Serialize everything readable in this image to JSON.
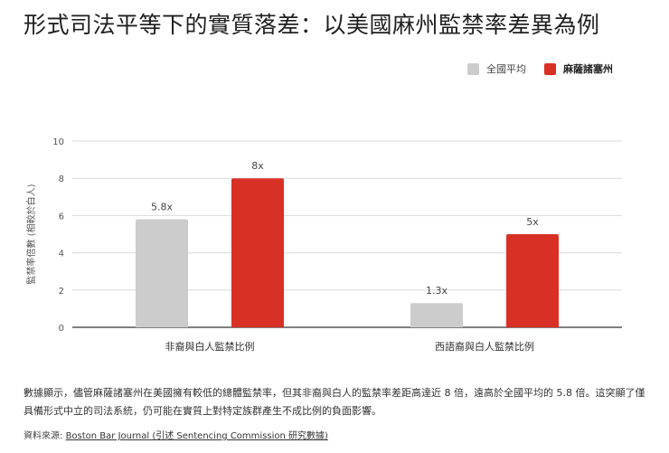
{
  "title": "形式司法平等下的實質落差：以美國麻州監禁率差異為例",
  "legend": {
    "items": [
      {
        "label": "全國平均",
        "color": "#cccccc"
      },
      {
        "label": "麻薩諸塞州",
        "color": "#d93025"
      }
    ]
  },
  "chart_data": {
    "type": "bar",
    "categories": [
      "非裔與白人監禁比例",
      "西語裔與白人監禁比例"
    ],
    "series": [
      {
        "name": "全國平均",
        "color": "#cccccc",
        "values": [
          5.8,
          1.3
        ],
        "labels": [
          "5.8x",
          "1.3x"
        ]
      },
      {
        "name": "麻薩諸塞州",
        "color": "#d93025",
        "values": [
          8,
          5
        ],
        "labels": [
          "8x",
          "5x"
        ]
      }
    ],
    "ylabel": "監禁率倍數 (相較於白人)",
    "yticks": [
      0,
      2,
      4,
      6,
      8,
      10
    ],
    "ylim": [
      0,
      10
    ],
    "grid": true,
    "legend_position": "top-right"
  },
  "caption": "數據顯示，儘管麻薩諸塞州在美國擁有較低的總體監禁率，但其非裔與白人的監禁率差距高達近 8 倍，遠高於全國平均的 5.8 倍。這突顯了僅具備形式中立的司法系統，仍可能在實質上對特定族群產生不成比例的負面影響。",
  "source": {
    "prefix": "資料來源: ",
    "link_text": "Boston Bar Journal (引述 Sentencing Commission 研究數據)"
  }
}
